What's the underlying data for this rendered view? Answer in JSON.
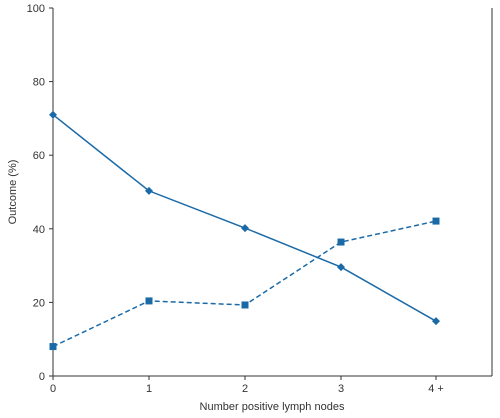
{
  "chart_data": {
    "type": "line",
    "title": "",
    "xlabel": "Number positive lymph nodes",
    "ylabel": "Outcome (%)",
    "categories": [
      "0",
      "1",
      "2",
      "3",
      "4 +"
    ],
    "ylim": [
      0,
      100
    ],
    "yticks": [
      "0",
      "20",
      "40",
      "60",
      "80",
      "100"
    ],
    "grid": false,
    "legend": "none",
    "series": [
      {
        "values": [
          71,
          50.3,
          40.2,
          29.6,
          14.9
        ],
        "line_style": "solid",
        "marker": "diamond",
        "color": "#1a6aa8"
      },
      {
        "values": [
          8,
          20.4,
          19.3,
          36.4,
          42.1
        ],
        "line_style": "dashed",
        "marker": "square",
        "color": "#1a6aa8"
      }
    ]
  }
}
